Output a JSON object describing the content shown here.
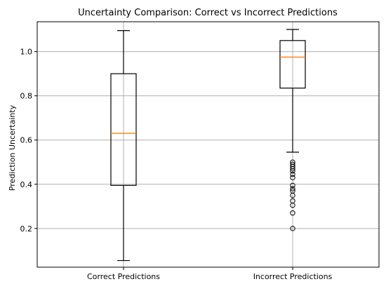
{
  "chart_data": {
    "type": "box",
    "title": "Uncertainty Comparison: Correct vs Incorrect Predictions",
    "xlabel": "",
    "ylabel": "Prediction Uncertainty",
    "ylim": [
      0.025,
      1.135
    ],
    "yticks": [
      0.2,
      0.4,
      0.6,
      0.8,
      1.0
    ],
    "ytick_labels": [
      "0.2",
      "0.4",
      "0.6",
      "0.8",
      "1.0"
    ],
    "grid": true,
    "categories": [
      "Correct Predictions",
      "Incorrect Predictions"
    ],
    "boxes": [
      {
        "category": "Correct Predictions",
        "whisker_low": 0.055,
        "q1": 0.395,
        "median": 0.63,
        "q3": 0.9,
        "whisker_high": 1.095,
        "outliers": []
      },
      {
        "category": "Incorrect Predictions",
        "whisker_low": 0.545,
        "q1": 0.835,
        "median": 0.975,
        "q3": 1.05,
        "whisker_high": 1.1,
        "outliers": [
          0.2,
          0.27,
          0.305,
          0.325,
          0.35,
          0.37,
          0.38,
          0.395,
          0.43,
          0.445,
          0.46,
          0.47,
          0.48,
          0.49,
          0.5
        ]
      }
    ],
    "colors": {
      "box": "#000000",
      "median": "#ff7f0e",
      "grid": "#b0b0b0",
      "outlier": "#000000"
    }
  }
}
